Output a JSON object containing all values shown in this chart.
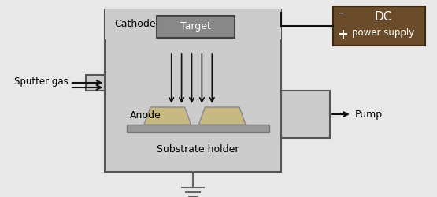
{
  "bg_color": "#e8e8e8",
  "chamber_color": "#cccccc",
  "chamber_border": "#555555",
  "target_box_color": "#888888",
  "target_box_border": "#444444",
  "target_label_color": "white",
  "cathode_label": "Cathode",
  "target_label": "Target",
  "anode_label": "Anode",
  "substrate_label": "Substrate holder",
  "sputter_gas_label": "Sputter gas",
  "pump_label": "Pump",
  "dc_line1": "DC",
  "dc_line2": "power supply",
  "dc_box_color": "#6b4c2a",
  "dc_box_border": "#3a2810",
  "dc_text_color": "white",
  "substrate_holder_color": "#999999",
  "substrate_color": "#c8b882",
  "ground_line_color": "#666666",
  "arrow_color": "#111111",
  "wire_color": "#111111"
}
